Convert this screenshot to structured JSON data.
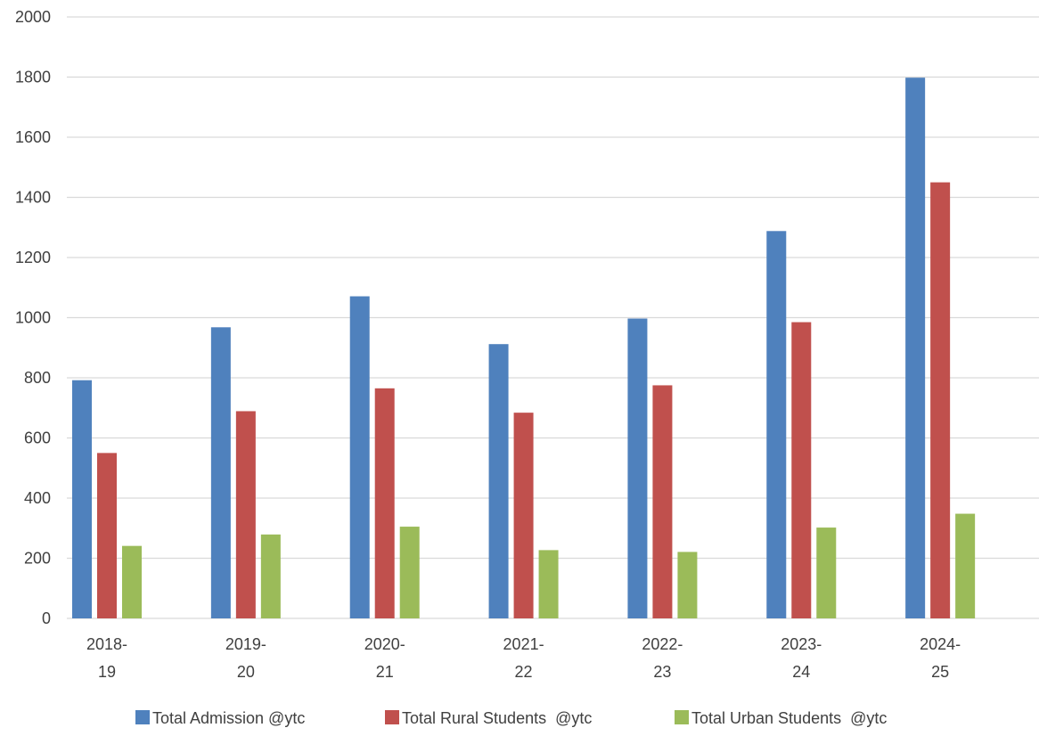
{
  "chart_data": {
    "type": "bar",
    "categories": [
      [
        "2018-",
        "19"
      ],
      [
        "2019-",
        "20"
      ],
      [
        "2020-",
        "21"
      ],
      [
        "2021-",
        "22"
      ],
      [
        "2022-",
        "23"
      ],
      [
        "2023-",
        "24"
      ],
      [
        "2024-",
        "25"
      ]
    ],
    "series": [
      {
        "name": "Total Admission @ytc",
        "color": "#4F81BD",
        "values": [
          792,
          968,
          1071,
          912,
          997,
          1288,
          1798
        ]
      },
      {
        "name": "Total Rural Students  @ytc",
        "color": "#C0504D",
        "values": [
          550,
          689,
          765,
          684,
          775,
          985,
          1450
        ]
      },
      {
        "name": "Total Urban Students  @ytc",
        "color": "#9BBB59",
        "values": [
          241,
          279,
          305,
          227,
          221,
          302,
          348
        ]
      }
    ],
    "ylim": [
      0,
      2000
    ],
    "yticks": [
      0,
      200,
      400,
      600,
      800,
      1000,
      1200,
      1400,
      1600,
      1800,
      2000
    ],
    "grid": true,
    "gridColor": "#D9D9D9",
    "legend": "bottom"
  }
}
